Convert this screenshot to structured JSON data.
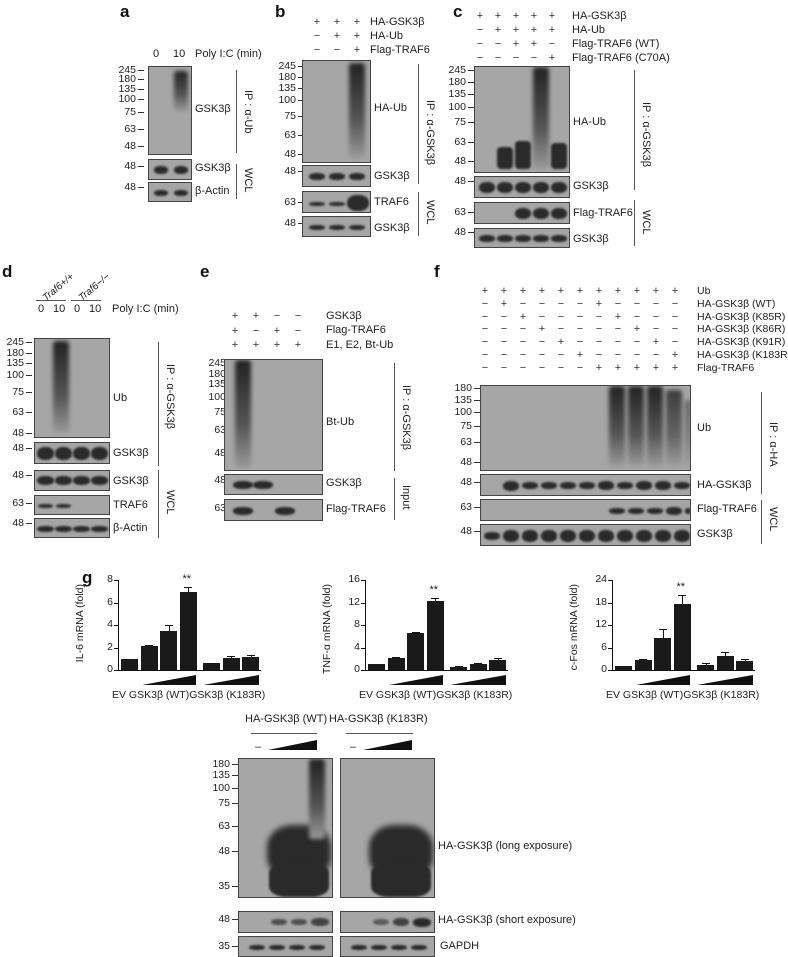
{
  "panels": {
    "a": {
      "label": "a",
      "lanes": [
        "0",
        "10"
      ],
      "condition": "Poly I:C (min)",
      "mw_ip": [
        "245",
        "180",
        "135",
        "100",
        "75",
        "63",
        "48"
      ],
      "mw_wcl": [
        "48",
        "48"
      ],
      "blots": [
        "GSK3β",
        "GSK3β",
        "β-Actin"
      ],
      "groups": [
        "IP : α-Ub",
        "WCL"
      ]
    },
    "b": {
      "label": "b",
      "rows": [
        {
          "name": "HA-GSK3β",
          "signs": [
            "+",
            "+",
            "+"
          ]
        },
        {
          "name": "HA-Ub",
          "signs": [
            "−",
            "+",
            "+"
          ]
        },
        {
          "name": "Flag-TRAF6",
          "signs": [
            "−",
            "−",
            "+"
          ]
        }
      ],
      "mw_ip": [
        "245",
        "180",
        "135",
        "100",
        "75",
        "63",
        "48"
      ],
      "mw_other": [
        "48",
        "63",
        "48"
      ],
      "blots": [
        "HA-Ub",
        "GSK3β",
        "TRAF6",
        "GSK3β"
      ],
      "groups": [
        "IP : α-GSK3β",
        "WCL"
      ]
    },
    "c": {
      "label": "c",
      "rows": [
        {
          "name": "HA-GSK3β",
          "signs": [
            "+",
            "+",
            "+",
            "+",
            "+"
          ]
        },
        {
          "name": "HA-Ub",
          "signs": [
            "−",
            "+",
            "+",
            "+",
            "+"
          ]
        },
        {
          "name": "Flag-TRAF6 (WT)",
          "signs": [
            "−",
            "−",
            "+",
            "+",
            "−"
          ]
        },
        {
          "name": "Flag-TRAF6 (C70A)",
          "signs": [
            "−",
            "−",
            "−",
            "−",
            "+"
          ]
        }
      ],
      "mw_ip": [
        "245",
        "180",
        "135",
        "100",
        "75",
        "63",
        "48"
      ],
      "mw_other": [
        "48",
        "63",
        "48"
      ],
      "blots": [
        "HA-Ub",
        "GSK3β",
        "Flag-TRAF6",
        "GSK3β"
      ],
      "groups": [
        "IP : α-GSK3β",
        "WCL"
      ]
    },
    "d": {
      "label": "d",
      "genotypes": [
        "Traf6+/+",
        "Traf6−/−"
      ],
      "lanes": [
        "0",
        "10",
        "0",
        "10"
      ],
      "condition": "Poly I:C (min)",
      "mw_ip": [
        "245",
        "180",
        "135",
        "100",
        "75",
        "63",
        "48"
      ],
      "mw_other": [
        "48",
        "48",
        "63",
        "48"
      ],
      "blots": [
        "Ub",
        "GSK3β",
        "GSK3β",
        "TRAF6",
        "β-Actin"
      ],
      "groups": [
        "IP : α-GSK3β",
        "WCL"
      ]
    },
    "e": {
      "label": "e",
      "rows": [
        {
          "name": "GSK3β",
          "signs": [
            "+",
            "+",
            "−",
            "−"
          ]
        },
        {
          "name": "Flag-TRAF6",
          "signs": [
            "+",
            "−",
            "+",
            "−"
          ]
        },
        {
          "name": "E1, E2, Bt-Ub",
          "signs": [
            "+",
            "+",
            "+",
            "+"
          ]
        }
      ],
      "mw_ip": [
        "245",
        "180",
        "135",
        "100",
        "75",
        "63",
        "48"
      ],
      "mw_other": [
        "48",
        "63"
      ],
      "blots": [
        "Bt-Ub",
        "GSK3β",
        "Flag-TRAF6"
      ],
      "groups": [
        "IP : α-GSK3β",
        "Input"
      ]
    },
    "f": {
      "label": "f",
      "rows": [
        {
          "name": "Ub",
          "signs": [
            "+",
            "+",
            "+",
            "+",
            "+",
            "+",
            "+",
            "+",
            "+",
            "+",
            "+"
          ]
        },
        {
          "name": "HA-GSK3β (WT)",
          "signs": [
            "−",
            "+",
            "−",
            "−",
            "−",
            "−",
            "+",
            "−",
            "−",
            "−",
            "−"
          ]
        },
        {
          "name": "HA-GSK3β (K85R)",
          "signs": [
            "−",
            "−",
            "+",
            "−",
            "−",
            "−",
            "−",
            "+",
            "−",
            "−",
            "−"
          ]
        },
        {
          "name": "HA-GSK3β (K86R)",
          "signs": [
            "−",
            "−",
            "−",
            "+",
            "−",
            "−",
            "−",
            "−",
            "+",
            "−",
            "−"
          ]
        },
        {
          "name": "HA-GSK3β (K91R)",
          "signs": [
            "−",
            "−",
            "−",
            "−",
            "+",
            "−",
            "−",
            "−",
            "−",
            "+",
            "−"
          ]
        },
        {
          "name": "HA-GSK3β (K183R)",
          "signs": [
            "−",
            "−",
            "−",
            "−",
            "−",
            "+",
            "−",
            "−",
            "−",
            "−",
            "+"
          ]
        },
        {
          "name": "Flag-TRAF6",
          "signs": [
            "−",
            "−",
            "−",
            "−",
            "−",
            "−",
            "+",
            "+",
            "+",
            "+",
            "+"
          ]
        }
      ],
      "mw_ip": [
        "180",
        "135",
        "100",
        "75",
        "63",
        "48"
      ],
      "mw_other": [
        "48",
        "63",
        "48"
      ],
      "blots": [
        "Ub",
        "HA-GSK3β",
        "Flag-TRAF6",
        "GSK3β"
      ],
      "groups": [
        "IP : α-HA",
        "WCL"
      ]
    },
    "g": {
      "label": "g",
      "lower_blot": {
        "groups": [
          "HA-GSK3β (WT)",
          "HA-GSK3β (K183R)"
        ],
        "dash": "–",
        "mw_long": [
          "180",
          "135",
          "100",
          "75",
          "63",
          "48",
          "35"
        ],
        "mw_short": [
          "48"
        ],
        "mw_gapdh": [
          "35"
        ],
        "blots": [
          "HA-GSK3β (long exposure)",
          "HA-GSK3β (short exposure)",
          "GAPDH"
        ]
      }
    }
  },
  "chart_data": [
    {
      "type": "bar",
      "title": "",
      "xlabel": "EV GSK3β (WT)GSK3β (K183R)",
      "ylabel": "IL-6 mRNA (fold)",
      "ylim": [
        0,
        8
      ],
      "yticks": [
        "0",
        "2",
        "4",
        "6",
        "8"
      ],
      "categories": [
        "EV",
        "WT low",
        "WT mid",
        "WT high",
        "K183R low",
        "K183R mid",
        "K183R high"
      ],
      "values": [
        1.0,
        2.1,
        3.5,
        6.9,
        0.6,
        1.1,
        1.15
      ],
      "errors": [
        0,
        0.1,
        0.5,
        0.5,
        0.05,
        0.15,
        0.2
      ],
      "annotation": "**",
      "annotation_index": 3
    },
    {
      "type": "bar",
      "title": "",
      "xlabel": "EV GSK3β (WT)GSK3β (K183R)",
      "ylabel": "TNF-α mRNA (fold)",
      "ylim": [
        0,
        16
      ],
      "yticks": [
        "0",
        "4",
        "8",
        "12",
        "16"
      ],
      "categories": [
        "EV",
        "WT low",
        "WT mid",
        "WT high",
        "K183R low",
        "K183R mid",
        "K183R high"
      ],
      "values": [
        1.0,
        2.1,
        6.5,
        12.2,
        0.6,
        1.1,
        1.8
      ],
      "errors": [
        0,
        0.2,
        0.3,
        0.6,
        0.1,
        0.15,
        0.35
      ],
      "annotation": "**",
      "annotation_index": 3
    },
    {
      "type": "bar",
      "title": "",
      "xlabel": "EV GSK3β (WT)GSK3β (K183R)",
      "ylabel": "c-Fos mRNA (fold)",
      "ylim": [
        0,
        24
      ],
      "yticks": [
        "0",
        "6",
        "12",
        "18",
        "24"
      ],
      "categories": [
        "EV",
        "WT low",
        "WT mid",
        "WT high",
        "K183R low",
        "K183R mid",
        "K183R high"
      ],
      "values": [
        1.0,
        2.6,
        8.5,
        17.7,
        1.3,
        3.7,
        2.4
      ],
      "errors": [
        0,
        0.3,
        2.5,
        2.3,
        0.5,
        1.2,
        0.6
      ],
      "annotation": "**",
      "annotation_index": 3
    }
  ]
}
